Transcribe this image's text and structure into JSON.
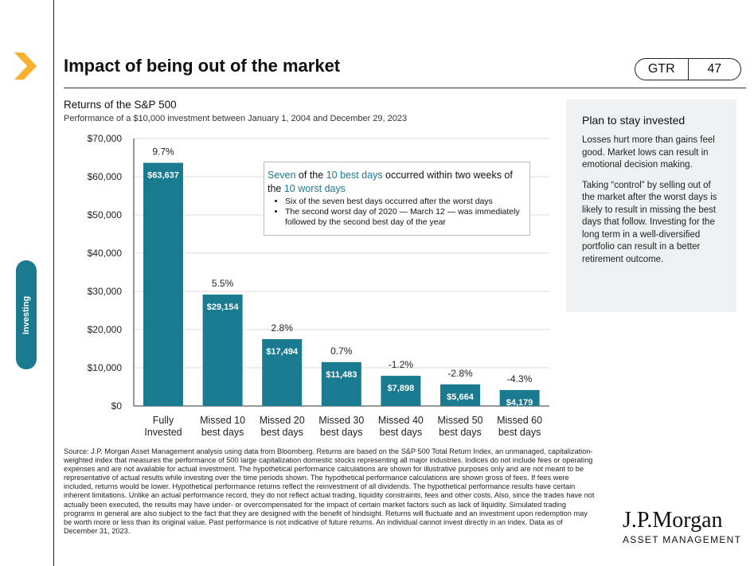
{
  "header": {
    "title": "Impact of being out of the market",
    "badge_left": "GTR",
    "badge_right": "47",
    "side_tab": "Investing"
  },
  "subtitle": "Returns of the S&P 500",
  "subtitle2": "Performance of a $10,000 investment between January 1, 2004 and December 29, 2023",
  "annotation": {
    "p1": "Seven",
    "p2": " of the ",
    "p3": "10 best days",
    "p4": " occurred within two weeks of the ",
    "p5": "10 worst days",
    "bullets": [
      "Six of the seven best days occurred after the worst days",
      "The second worst day of 2020 — March 12 — was immediately followed by the second best day of the year"
    ]
  },
  "panel": {
    "title": "Plan to stay invested",
    "p1": "Losses hurt more than gains feel good. Market lows can result in emotional decision making.",
    "p2": "Taking “control” by selling out of the market after the worst days is likely to result in missing the best days that follow. Investing for the long term in a well-diversified portfolio can result in a better retirement outcome."
  },
  "footnote": "Source: J.P. Morgan Asset Management analysis using data from Bloomberg. Returns are based on the S&P 500 Total Return Index, an unmanaged, capitalization-weighted index that measures the performance of 500 large capitalization domestic stocks representing all major industries. Indices do not include fees or operating expenses and are not available for actual investment. The hypothetical performance calculations are shown for illustrative purposes only and are not meant to be representative of actual results while investing over the time periods shown. The hypothetical performance calculations are shown gross of fees. If fees were included, returns would be lower. Hypothetical performance returns reflect the reinvestment of all dividends. The hypothetical performance results have certain inherent limitations. Unlike an actual performance record, they do not reflect actual trading, liquidity constraints, fees and other costs. Also, since the trades have not actually been executed, the results may have under- or overcompensated for the impact of certain market factors such as lack of liquidity. Simulated trading programs in general are also subject to the fact that they are designed with the benefit of hindsight. Returns will fluctuate and an investment upon redemption may be worth more or less than its original value. Past performance is not indicative of future returns. An individual cannot invest directly in an index. Data as of December 31, 2023.",
  "logo": {
    "name": "J.P.Morgan",
    "sub": "ASSET MANAGEMENT"
  },
  "colors": {
    "bar": "#1a7a90",
    "accent": "#fbb12e"
  },
  "chart_data": {
    "type": "bar",
    "title": "Returns of the S&P 500",
    "xlabel": "",
    "ylabel": "",
    "ylim": [
      0,
      70000
    ],
    "yticks": [
      0,
      10000,
      20000,
      30000,
      40000,
      50000,
      60000,
      70000
    ],
    "ytick_labels": [
      "$0",
      "$10,000",
      "$20,000",
      "$30,000",
      "$40,000",
      "$50,000",
      "$60,000",
      "$70,000"
    ],
    "categories": [
      [
        "Fully",
        "Invested"
      ],
      [
        "Missed 10",
        "best days"
      ],
      [
        "Missed 20",
        "best days"
      ],
      [
        "Missed 30",
        "best days"
      ],
      [
        "Missed 40",
        "best days"
      ],
      [
        "Missed 50",
        "best days"
      ],
      [
        "Missed 60",
        "best days"
      ]
    ],
    "values": [
      63637,
      29154,
      17494,
      11483,
      7898,
      5664,
      4179
    ],
    "value_labels": [
      "$63,637",
      "$29,154",
      "$17,494",
      "$11,483",
      "$7,898",
      "$5,664",
      "$4,179"
    ],
    "return_labels": [
      "9.7%",
      "5.5%",
      "2.8%",
      "0.7%",
      "-1.2%",
      "-2.8%",
      "-4.3%"
    ],
    "grid": true
  }
}
